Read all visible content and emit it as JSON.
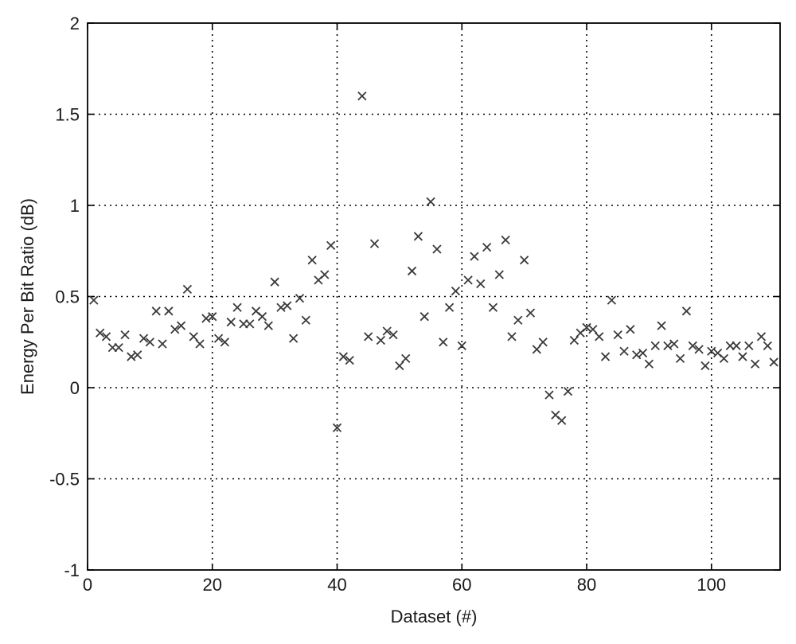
{
  "chart_data": {
    "type": "scatter",
    "title": "",
    "xlabel": "Dataset (#)",
    "ylabel": "Energy Per Bit Ratio (dB)",
    "xlim": [
      0,
      111
    ],
    "ylim": [
      -1,
      2
    ],
    "xticks": [
      0,
      20,
      40,
      60,
      80,
      100
    ],
    "yticks": [
      -1,
      -0.5,
      0,
      0.5,
      1,
      1.5,
      2
    ],
    "xtick_labels": [
      "0",
      "20",
      "40",
      "60",
      "80",
      "100"
    ],
    "ytick_labels": [
      "-1",
      "-0.5",
      "0",
      "0.5",
      "1",
      "1.5",
      "2"
    ],
    "grid": true,
    "marker": "x",
    "marker_color": "#3a3a3a",
    "series": [
      {
        "x": [
          1,
          2,
          3,
          4,
          5,
          6,
          7,
          8,
          9,
          10,
          11,
          12,
          13,
          14,
          15,
          16,
          17,
          18,
          19,
          20,
          21,
          22,
          23,
          24,
          25,
          26,
          27,
          28,
          29,
          30,
          31,
          32,
          33,
          34,
          35,
          36,
          37,
          38,
          39,
          40,
          41,
          42,
          44,
          45,
          46,
          47,
          48,
          49,
          50,
          51,
          52,
          53,
          54,
          55,
          56,
          57,
          58,
          59,
          60,
          61,
          62,
          63,
          64,
          65,
          66,
          67,
          68,
          69,
          70,
          71,
          72,
          73,
          74,
          75,
          76,
          77,
          78,
          79,
          80,
          81,
          82,
          83,
          84,
          85,
          86,
          87,
          88,
          89,
          90,
          91,
          92,
          93,
          94,
          95,
          96,
          97,
          98,
          99,
          100,
          101,
          102,
          103,
          104,
          105,
          106,
          107,
          108,
          109,
          110
        ],
        "y": [
          0.48,
          0.3,
          0.28,
          0.22,
          0.22,
          0.29,
          0.17,
          0.18,
          0.27,
          0.25,
          0.42,
          0.24,
          0.42,
          0.32,
          0.34,
          0.54,
          0.28,
          0.24,
          0.38,
          0.39,
          0.27,
          0.25,
          0.36,
          0.44,
          0.35,
          0.35,
          0.42,
          0.39,
          0.34,
          0.58,
          0.44,
          0.45,
          0.27,
          0.49,
          0.37,
          0.7,
          0.59,
          0.62,
          0.78,
          -0.22,
          0.17,
          0.15,
          1.6,
          0.28,
          0.79,
          0.26,
          0.31,
          0.29,
          0.12,
          0.16,
          0.64,
          0.83,
          0.39,
          1.02,
          0.76,
          0.25,
          0.44,
          0.53,
          0.23,
          0.59,
          0.72,
          0.57,
          0.77,
          0.44,
          0.62,
          0.81,
          0.28,
          0.37,
          0.7,
          0.41,
          0.21,
          0.25,
          -0.04,
          -0.15,
          -0.18,
          -0.02,
          0.26,
          0.3,
          0.33,
          0.32,
          0.28,
          0.17,
          0.48,
          0.29,
          0.2,
          0.32,
          0.18,
          0.19,
          0.13,
          0.23,
          0.34,
          0.23,
          0.24,
          0.16,
          0.42,
          0.23,
          0.21,
          0.12,
          0.2,
          0.19,
          0.16,
          0.23,
          0.23,
          0.17,
          0.23,
          0.13,
          0.28,
          0.23,
          0.14
        ]
      }
    ]
  }
}
